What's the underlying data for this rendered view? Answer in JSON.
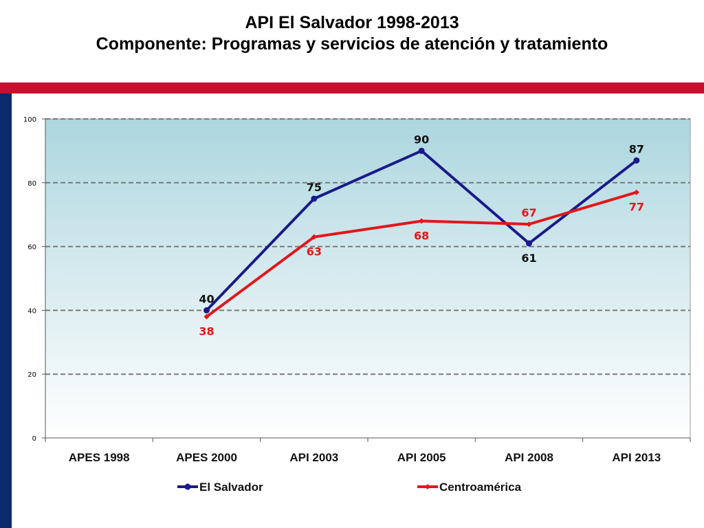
{
  "header": {
    "title": "API El Salvador 1998-2013",
    "subtitle": "Componente: Programas y servicios de atención y tratamiento"
  },
  "colors": {
    "banner": "#c8102e",
    "sidebar": "#0b2b6b",
    "el_salvador": "#1a1a8a",
    "centroamerica": "#e3161b",
    "plot_top": "#acd6df",
    "plot_bottom": "#ffffff"
  },
  "chart_data": {
    "type": "line",
    "title": "",
    "xlabel": "",
    "ylabel": "",
    "categories": [
      "APES 1998",
      "APES 2000",
      "API 2003",
      "API 2005",
      "API 2008",
      "API 2013"
    ],
    "ylim": [
      0,
      100
    ],
    "yticks": [
      0,
      20,
      40,
      60,
      80,
      100
    ],
    "grid": "horizontal dashed",
    "legend": "bottom",
    "series": [
      {
        "name": "El Salvador",
        "color": "#1a1a8a",
        "marker": "circle",
        "values": [
          null,
          40,
          75,
          90,
          61,
          87
        ],
        "labels": [
          "",
          "40",
          "75",
          "90",
          "61",
          "87"
        ]
      },
      {
        "name": "Centroamérica",
        "color": "#e3161b",
        "marker": "diamond",
        "values": [
          null,
          38,
          63,
          68,
          67,
          77
        ],
        "labels": [
          "",
          "38",
          "63",
          "68",
          "67",
          "77"
        ]
      }
    ]
  }
}
